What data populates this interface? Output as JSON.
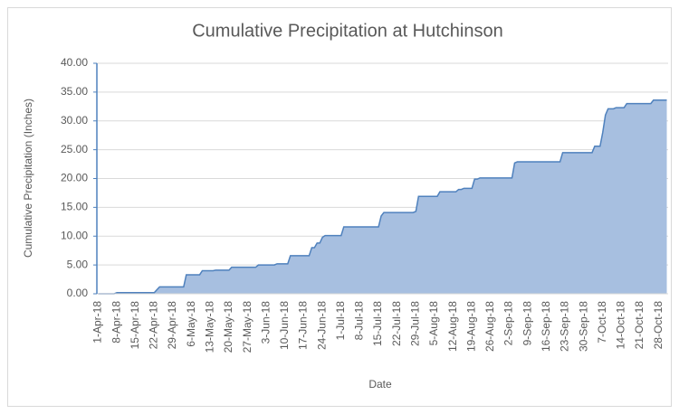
{
  "chart_data": {
    "type": "area",
    "title": "Cumulative Precipitation at Hutchinson",
    "x_label": "Date",
    "y_label": "Cumulative Precipitation (Inches)",
    "color": "#4f81bd",
    "grid": true,
    "ylim": [
      0,
      40
    ],
    "yticks": [
      {
        "value": 0,
        "label": "0.00"
      },
      {
        "value": 5,
        "label": "5.00"
      },
      {
        "value": 10,
        "label": "10.00"
      },
      {
        "value": 15,
        "label": "15.00"
      },
      {
        "value": 20,
        "label": "20.00"
      },
      {
        "value": 25,
        "label": "25.00"
      },
      {
        "value": 30,
        "label": "30.00"
      },
      {
        "value": 35,
        "label": "35.00"
      },
      {
        "value": 40,
        "label": "40.00"
      }
    ],
    "categories": [
      "1-Apr-18",
      null,
      null,
      null,
      null,
      null,
      null,
      "8-Apr-18",
      null,
      null,
      null,
      null,
      null,
      null,
      "15-Apr-18",
      null,
      null,
      null,
      null,
      null,
      null,
      "22-Apr-18",
      null,
      null,
      null,
      null,
      null,
      null,
      "29-Apr-18",
      null,
      null,
      null,
      null,
      null,
      null,
      "6-May-18",
      null,
      null,
      null,
      null,
      null,
      null,
      "13-May-18",
      null,
      null,
      null,
      null,
      null,
      null,
      "20-May-18",
      null,
      null,
      null,
      null,
      null,
      null,
      "27-May-18",
      null,
      null,
      null,
      null,
      null,
      null,
      "3-Jun-18",
      null,
      null,
      null,
      null,
      null,
      null,
      "10-Jun-18",
      null,
      null,
      null,
      null,
      null,
      null,
      "17-Jun-18",
      null,
      null,
      null,
      null,
      null,
      null,
      "24-Jun-18",
      null,
      null,
      null,
      null,
      null,
      null,
      "1-Jul-18",
      null,
      null,
      null,
      null,
      null,
      null,
      "8-Jul-18",
      null,
      null,
      null,
      null,
      null,
      null,
      "15-Jul-18",
      null,
      null,
      null,
      null,
      null,
      null,
      "22-Jul-18",
      null,
      null,
      null,
      null,
      null,
      null,
      "29-Jul-18",
      null,
      null,
      null,
      null,
      null,
      null,
      "5-Aug-18",
      null,
      null,
      null,
      null,
      null,
      null,
      "12-Aug-18",
      null,
      null,
      null,
      null,
      null,
      null,
      "19-Aug-18",
      null,
      null,
      null,
      null,
      null,
      null,
      "26-Aug-18",
      null,
      null,
      null,
      null,
      null,
      null,
      "2-Sep-18",
      null,
      null,
      null,
      null,
      null,
      null,
      "9-Sep-18",
      null,
      null,
      null,
      null,
      null,
      null,
      "16-Sep-18",
      null,
      null,
      null,
      null,
      null,
      null,
      "23-Sep-18",
      null,
      null,
      null,
      null,
      null,
      null,
      "30-Sep-18",
      null,
      null,
      null,
      null,
      null,
      null,
      "7-Oct-18",
      null,
      null,
      null,
      null,
      null,
      null,
      "14-Oct-18",
      null,
      null,
      null,
      null,
      null,
      null,
      "21-Oct-18",
      null,
      null,
      null,
      null,
      null,
      null,
      "28-Oct-18",
      null,
      null,
      null
    ],
    "values": [
      0,
      0,
      0,
      0,
      0,
      0,
      0,
      0.2,
      0.2,
      0.2,
      0.2,
      0.2,
      0.2,
      0.2,
      0.2,
      0.2,
      0.2,
      0.2,
      0.2,
      0.2,
      0.2,
      0.2,
      0.7,
      1.2,
      1.2,
      1.2,
      1.2,
      1.2,
      1.2,
      1.2,
      1.2,
      1.2,
      1.2,
      3.3,
      3.3,
      3.3,
      3.3,
      3.3,
      3.3,
      4.0,
      4.0,
      4.0,
      4.0,
      4.0,
      4.1,
      4.1,
      4.1,
      4.1,
      4.1,
      4.1,
      4.6,
      4.6,
      4.6,
      4.6,
      4.6,
      4.6,
      4.6,
      4.6,
      4.6,
      4.6,
      5.0,
      5.0,
      5.0,
      5.0,
      5.0,
      5.0,
      5.0,
      5.2,
      5.2,
      5.2,
      5.2,
      5.2,
      6.6,
      6.6,
      6.6,
      6.6,
      6.6,
      6.6,
      6.6,
      6.6,
      8.0,
      8.0,
      8.8,
      8.8,
      9.8,
      10.1,
      10.1,
      10.1,
      10.1,
      10.1,
      10.1,
      10.1,
      11.6,
      11.6,
      11.6,
      11.6,
      11.6,
      11.6,
      11.6,
      11.6,
      11.6,
      11.6,
      11.6,
      11.6,
      11.6,
      11.6,
      13.5,
      14.1,
      14.1,
      14.1,
      14.1,
      14.1,
      14.1,
      14.1,
      14.1,
      14.1,
      14.1,
      14.1,
      14.1,
      14.3,
      16.9,
      16.9,
      16.9,
      16.9,
      16.9,
      16.9,
      16.9,
      16.9,
      17.7,
      17.7,
      17.7,
      17.7,
      17.7,
      17.7,
      17.7,
      18.1,
      18.1,
      18.3,
      18.3,
      18.3,
      18.3,
      19.9,
      19.9,
      20.1,
      20.1,
      20.1,
      20.1,
      20.1,
      20.1,
      20.1,
      20.1,
      20.1,
      20.1,
      20.1,
      20.1,
      20.1,
      22.7,
      22.9,
      22.9,
      22.9,
      22.9,
      22.9,
      22.9,
      22.9,
      22.9,
      22.9,
      22.9,
      22.9,
      22.9,
      22.9,
      22.9,
      22.9,
      22.9,
      22.9,
      24.5,
      24.5,
      24.5,
      24.5,
      24.5,
      24.5,
      24.5,
      24.5,
      24.5,
      24.5,
      24.5,
      24.5,
      25.6,
      25.6,
      25.6,
      28.0,
      31.0,
      32.1,
      32.1,
      32.1,
      32.3,
      32.3,
      32.3,
      32.3,
      33.0,
      33.0,
      33.0,
      33.0,
      33.0,
      33.0,
      33.0,
      33.0,
      33.0,
      33.0,
      33.6,
      33.6,
      33.6,
      33.6,
      33.6,
      33.6
    ]
  }
}
